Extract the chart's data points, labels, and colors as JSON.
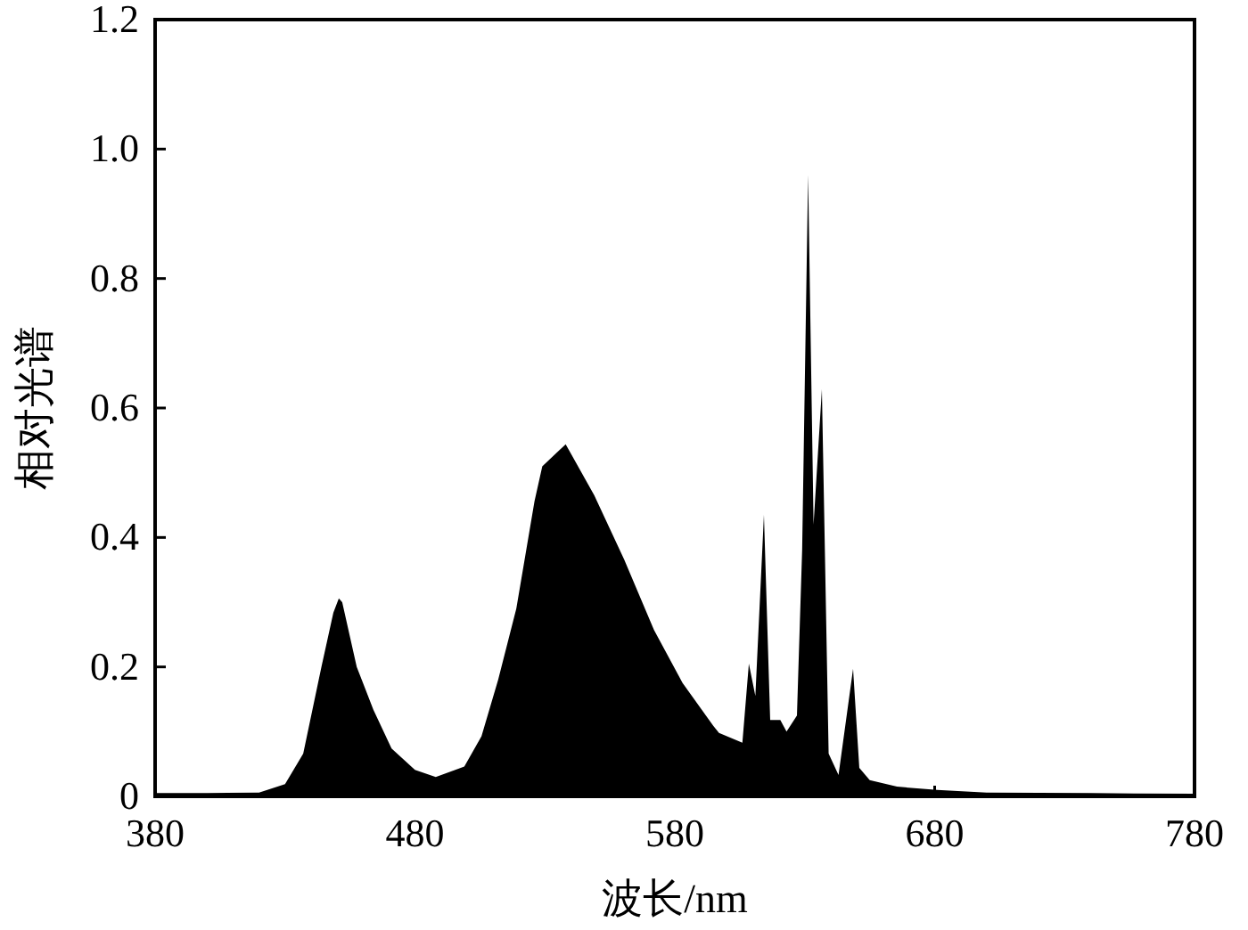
{
  "chart_data": {
    "type": "area",
    "xlabel": "波长/nm",
    "ylabel": "相对光谱",
    "color": "#000000",
    "x": [
      380,
      400,
      420,
      430,
      437,
      444,
      448.6,
      450.7,
      452,
      457.6,
      464,
      471,
      480,
      488,
      499,
      505.6,
      512,
      519,
      526,
      529,
      538,
      549,
      560.5,
      572,
      583,
      594.8,
      597,
      606,
      608.5,
      611,
      614.3,
      616.7,
      620.6,
      623,
      627,
      629,
      631.3,
      633.4,
      636.6,
      639.2,
      643,
      648.6,
      651,
      655,
      665.5,
      681,
      700,
      740,
      780
    ],
    "values": [
      0.005,
      0.005,
      0.006,
      0.019,
      0.066,
      0.2,
      0.284,
      0.306,
      0.3,
      0.2,
      0.134,
      0.074,
      0.041,
      0.03,
      0.046,
      0.093,
      0.18,
      0.29,
      0.456,
      0.51,
      0.544,
      0.465,
      0.366,
      0.257,
      0.175,
      0.109,
      0.098,
      0.083,
      0.205,
      0.155,
      0.435,
      0.118,
      0.118,
      0.1,
      0.125,
      0.38,
      0.96,
      0.42,
      0.629,
      0.066,
      0.033,
      0.197,
      0.044,
      0.025,
      0.015,
      0.01,
      0.006,
      0.005,
      0.004
    ],
    "xlim": [
      380,
      780
    ],
    "ylim": [
      0,
      1.2
    ],
    "xticks": [
      380,
      480,
      580,
      680,
      780
    ],
    "yticks": [
      0,
      0.2,
      0.4,
      0.6,
      0.8,
      {
        "value": 1,
        "label": "1.0"
      },
      1.2
    ]
  }
}
